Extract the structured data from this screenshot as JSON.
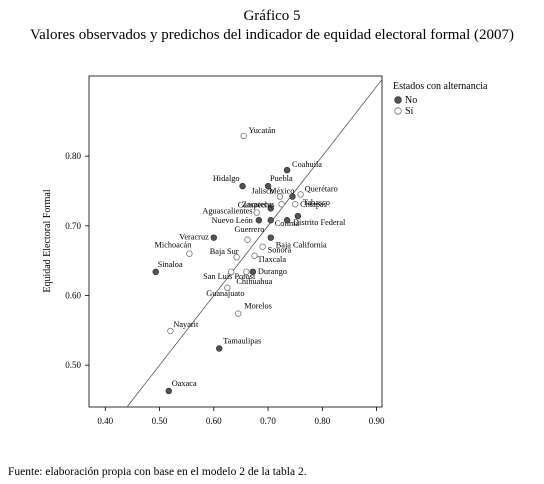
{
  "header": {
    "kicker": "Gráfico 5",
    "title": "Valores observados y predichos del indicador de equidad electoral formal (2007)"
  },
  "footer": {
    "source": "Fuente: elaboración propia con base en el modelo 2 de la tabla 2."
  },
  "chart_data": {
    "type": "scatter",
    "xlabel": "",
    "ylabel": "Equidad Electoral Formal",
    "xlim": [
      0.37,
      0.91
    ],
    "ylim": [
      0.44,
      0.915
    ],
    "x_ticks": [
      "0.40",
      "0.50",
      "0.60",
      "0.70",
      "0.80",
      "0.90"
    ],
    "y_ticks": [
      "0.50",
      "0.60",
      "0.70",
      "0.80"
    ],
    "grid": false,
    "reference_line": "y = x",
    "legend": {
      "title": "Estados con alternancia",
      "position": "right",
      "entries": [
        {
          "label": "No",
          "style": "filled",
          "color": "#555555"
        },
        {
          "label": "Sí",
          "style": "hollow",
          "color": "#777777"
        }
      ]
    },
    "points": [
      {
        "label": "Yucatán",
        "x": 0.655,
        "y": 0.829,
        "group": "Sí"
      },
      {
        "label": "Coahuila",
        "x": 0.735,
        "y": 0.78,
        "group": "No"
      },
      {
        "label": "Hidalgo",
        "x": 0.653,
        "y": 0.757,
        "group": "No"
      },
      {
        "label": "Puebla",
        "x": 0.7,
        "y": 0.757,
        "group": "No"
      },
      {
        "label": "Querétaro",
        "x": 0.76,
        "y": 0.745,
        "group": "Sí"
      },
      {
        "label": "Jalisco",
        "x": 0.722,
        "y": 0.742,
        "group": "Sí"
      },
      {
        "label": "México",
        "x": 0.745,
        "y": 0.742,
        "group": "No"
      },
      {
        "label": "Zacatecas",
        "x": 0.725,
        "y": 0.731,
        "group": "Sí"
      },
      {
        "label": "Chiapas",
        "x": 0.75,
        "y": 0.731,
        "group": "Sí"
      },
      {
        "label": "Campeche",
        "x": 0.705,
        "y": 0.725,
        "group": "No"
      },
      {
        "label": "Aguascalientes",
        "x": 0.679,
        "y": 0.719,
        "group": "Sí"
      },
      {
        "label": "Tabasco",
        "x": 0.755,
        "y": 0.714,
        "group": "No"
      },
      {
        "label": "Nuevo León",
        "x": 0.683,
        "y": 0.708,
        "group": "No"
      },
      {
        "label": "Colima",
        "x": 0.705,
        "y": 0.708,
        "group": "No"
      },
      {
        "label": "Distrito Federal",
        "x": 0.735,
        "y": 0.708,
        "group": "No"
      },
      {
        "label": "Veracruz",
        "x": 0.6,
        "y": 0.683,
        "group": "No"
      },
      {
        "label": "Baja California",
        "x": 0.705,
        "y": 0.683,
        "group": "No"
      },
      {
        "label": "Michoacán",
        "x": 0.555,
        "y": 0.66,
        "group": "Sí"
      },
      {
        "label": "Guerrero",
        "x": 0.662,
        "y": 0.68,
        "group": "Sí"
      },
      {
        "label": "Sonora",
        "x": 0.69,
        "y": 0.67,
        "group": "Sí"
      },
      {
        "label": "Tlaxcala",
        "x": 0.675,
        "y": 0.657,
        "group": "Sí"
      },
      {
        "label": "Baja Sur",
        "x": 0.642,
        "y": 0.655,
        "group": "Sí"
      },
      {
        "label": "Sinaloa",
        "x": 0.493,
        "y": 0.634,
        "group": "No"
      },
      {
        "label": "San Luis Potosí",
        "x": 0.632,
        "y": 0.634,
        "group": "Sí"
      },
      {
        "label": "Durango",
        "x": 0.672,
        "y": 0.634,
        "group": "No"
      },
      {
        "label": "Chihuahua",
        "x": 0.66,
        "y": 0.634,
        "group": "Sí"
      },
      {
        "label": "Guanajuato",
        "x": 0.625,
        "y": 0.611,
        "group": "Sí"
      },
      {
        "label": "Morelos",
        "x": 0.645,
        "y": 0.574,
        "group": "Sí"
      },
      {
        "label": "Nayarit",
        "x": 0.52,
        "y": 0.549,
        "group": "Sí"
      },
      {
        "label": "Tamaulipas",
        "x": 0.61,
        "y": 0.524,
        "group": "No"
      },
      {
        "label": "Oaxaca",
        "x": 0.517,
        "y": 0.463,
        "group": "No"
      }
    ]
  }
}
